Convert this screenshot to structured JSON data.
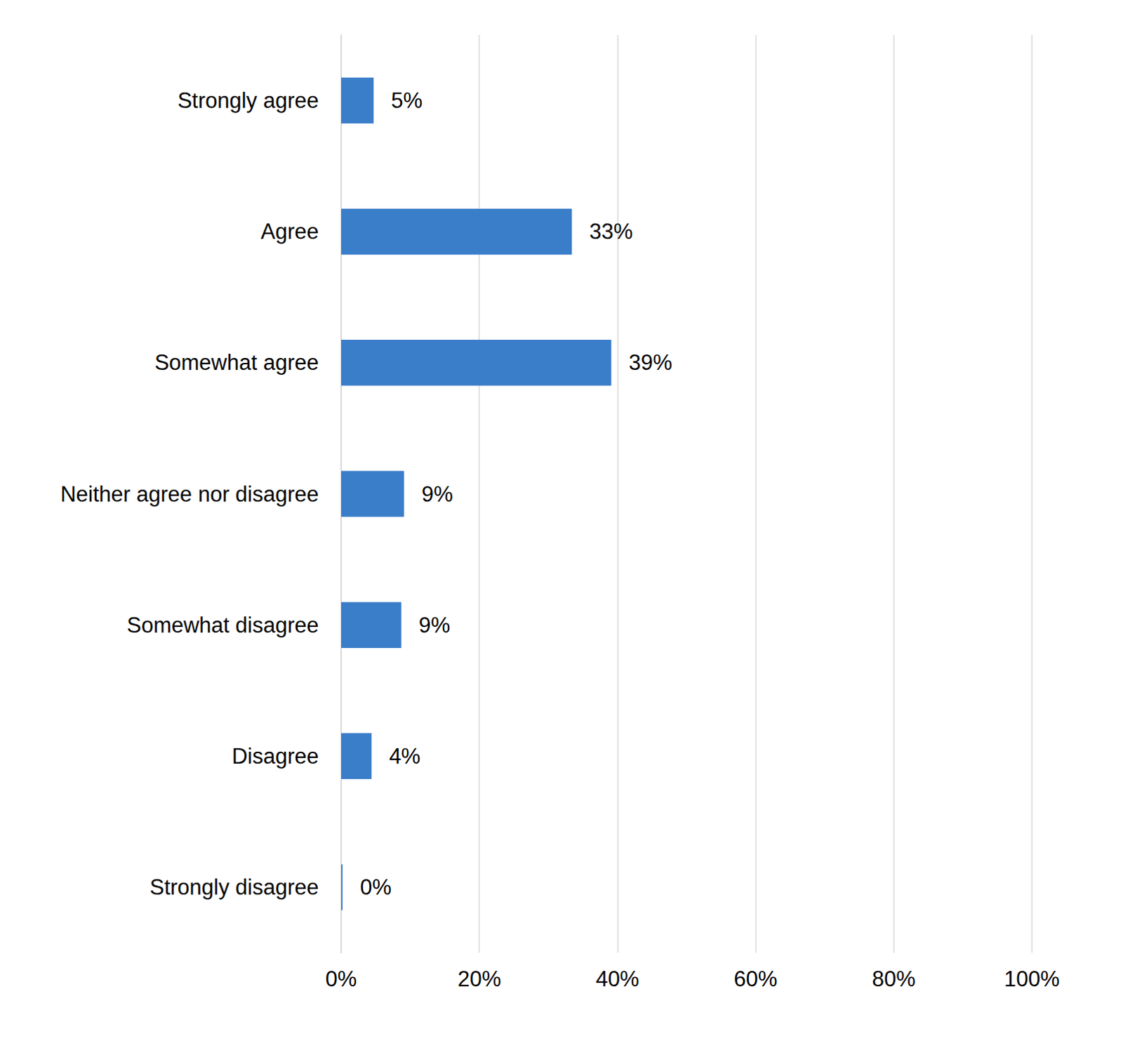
{
  "chart_data": {
    "type": "bar",
    "orientation": "horizontal",
    "categories": [
      "Strongly agree",
      "Agree",
      "Somewhat agree",
      "Neither agree nor disagree",
      "Somewhat disagree",
      "Disagree",
      "Strongly disagree"
    ],
    "values": [
      4.7,
      33.4,
      39.1,
      9.1,
      8.7,
      4.4,
      0.2
    ],
    "value_labels": [
      "5%",
      "33%",
      "39%",
      "9%",
      "9%",
      "4%",
      "0%"
    ],
    "color": "#3a7dc9",
    "xlim": [
      0,
      100
    ],
    "xticks": [
      {
        "value": 0,
        "label": "0%"
      },
      {
        "value": 20,
        "label": "20%"
      },
      {
        "value": 40,
        "label": "40%"
      },
      {
        "value": 60,
        "label": "60%"
      },
      {
        "value": 80,
        "label": "80%"
      },
      {
        "value": 100,
        "label": "100%"
      }
    ],
    "grid": true,
    "data_labels": true
  }
}
